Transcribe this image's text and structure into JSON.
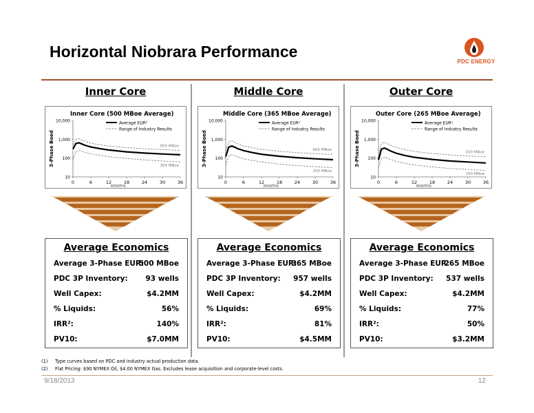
{
  "page": {
    "title": "Horizontal Niobrara Performance",
    "logo_text": "PDC ENERGY",
    "date": "9/18/2013",
    "page_number": "12",
    "footnotes": [
      {
        "num": "(1)",
        "text": "Type curves based on PDC and industry actual production data."
      },
      {
        "num": "(2)",
        "text": "Flat Pricing: $90 NYMEX Oil, $4.00 NYMEX Gas. Excludes lease acquisition and corporate-level costs."
      }
    ]
  },
  "colors": {
    "accent": "#a0522d",
    "wedge_dark": "#b5651d",
    "wedge_light": "#e8c9a8",
    "logo_orange": "#d9541e"
  },
  "columns": [
    {
      "heading": "Inner Core",
      "econ": {
        "title": "Average Economics",
        "rows": [
          {
            "label": "Average 3-Phase EUR:",
            "value": "500 MBoe"
          },
          {
            "label": "PDC 3P Inventory:",
            "value": "93 wells"
          },
          {
            "label": "Well Capex:",
            "value": "$4.2MM"
          },
          {
            "label": "% Liquids:",
            "value": "56%"
          },
          {
            "label": "IRR²:",
            "value": "140%"
          },
          {
            "label": "PV10:",
            "value": "$7.0MM"
          }
        ]
      }
    },
    {
      "heading": "Middle Core",
      "econ": {
        "title": "Average Economics",
        "rows": [
          {
            "label": "Average 3-Phase EUR:",
            "value": "365 MBoe"
          },
          {
            "label": "PDC 3P Inventory:",
            "value": "957 wells"
          },
          {
            "label": "Well Capex:",
            "value": "$4.2MM"
          },
          {
            "label": "% Liquids:",
            "value": "69%"
          },
          {
            "label": "IRR²:",
            "value": "81%"
          },
          {
            "label": "PV10:",
            "value": "$4.5MM"
          }
        ]
      }
    },
    {
      "heading": "Outer Core",
      "econ": {
        "title": "Average Economics",
        "rows": [
          {
            "label": "Average 3-Phase EUR:",
            "value": "265 MBoe"
          },
          {
            "label": "PDC 3P Inventory:",
            "value": "537 wells"
          },
          {
            "label": "Well Capex:",
            "value": "$4.2MM"
          },
          {
            "label": "% Liquids:",
            "value": "77%"
          },
          {
            "label": "IRR²:",
            "value": "50%"
          },
          {
            "label": "PV10:",
            "value": "$3.2MM"
          }
        ]
      }
    }
  ],
  "chart_data": [
    {
      "type": "line",
      "title": "Inner Core (500 MBoe Average)",
      "xlabel": "MONTHS",
      "ylabel": "3-Phase Boed",
      "xlim": [
        0,
        36
      ],
      "ylim": [
        10,
        10000
      ],
      "yscale": "log",
      "x_ticks": [
        "0",
        "6",
        "12",
        "18",
        "24",
        "30",
        "36"
      ],
      "y_ticks": [
        "10",
        "100",
        "1,000",
        "10,000"
      ],
      "legend": [
        "Average EUR¹",
        "Range of Industry Results"
      ],
      "legend_position": "top-right",
      "annotations": [
        "900 MBoe",
        "300 MBoe"
      ],
      "x": [
        0,
        1,
        2,
        3,
        4,
        6,
        9,
        12,
        18,
        24,
        30,
        36
      ],
      "series": [
        {
          "name": "Average EUR¹",
          "style": "solid",
          "values": [
            300,
            600,
            650,
            560,
            480,
            390,
            320,
            270,
            215,
            185,
            165,
            150
          ]
        },
        {
          "name": "Range of Industry Results (high)",
          "style": "dashed",
          "values": [
            500,
            1000,
            1100,
            900,
            780,
            620,
            510,
            440,
            360,
            310,
            280,
            255
          ]
        },
        {
          "name": "Range of Industry Results (low)",
          "style": "dashed",
          "values": [
            80,
            220,
            260,
            230,
            200,
            170,
            140,
            120,
            95,
            80,
            70,
            62
          ]
        }
      ]
    },
    {
      "type": "line",
      "title": "Middle Core (365 MBoe Average)",
      "xlabel": "MONTHS",
      "ylabel": "3-Phase Boed",
      "xlim": [
        0,
        36
      ],
      "ylim": [
        10,
        10000
      ],
      "yscale": "log",
      "x_ticks": [
        "0",
        "6",
        "12",
        "18",
        "24",
        "30",
        "36"
      ],
      "y_ticks": [
        "10",
        "100",
        "1,000",
        "10,000"
      ],
      "legend": [
        "Average EUR¹",
        "Range of Industry Results"
      ],
      "legend_position": "top-right",
      "annotations": [
        "600 MBoe",
        "200 MBoe"
      ],
      "x": [
        0,
        1,
        2,
        3,
        4,
        6,
        9,
        12,
        18,
        24,
        30,
        36
      ],
      "series": [
        {
          "name": "Average EUR¹",
          "style": "solid",
          "values": [
            120,
            380,
            440,
            380,
            320,
            250,
            195,
            160,
            125,
            105,
            92,
            82
          ]
        },
        {
          "name": "Range of Industry Results (high)",
          "style": "dashed",
          "values": [
            250,
            700,
            820,
            700,
            580,
            440,
            350,
            290,
            230,
            195,
            172,
            155
          ]
        },
        {
          "name": "Range of Industry Results (low)",
          "style": "dashed",
          "values": [
            40,
            120,
            150,
            135,
            115,
            92,
            74,
            62,
            48,
            40,
            35,
            31
          ]
        }
      ]
    },
    {
      "type": "line",
      "title": "Outer Core (265 MBoe Average)",
      "xlabel": "MONTHS",
      "ylabel": "3-Phase Boed",
      "xlim": [
        0,
        36
      ],
      "ylim": [
        10,
        10000
      ],
      "yscale": "log",
      "x_ticks": [
        "0",
        "6",
        "12",
        "18",
        "24",
        "30",
        "36"
      ],
      "y_ticks": [
        "10",
        "100",
        "1,000",
        "10,000"
      ],
      "legend": [
        "Average EUR¹",
        "Range of Industry Results"
      ],
      "legend_position": "top-right",
      "annotations": [
        "500 MBoe",
        "150 MBoe"
      ],
      "x": [
        0,
        1,
        2,
        3,
        4,
        6,
        9,
        12,
        18,
        24,
        30,
        36
      ],
      "series": [
        {
          "name": "Average EUR¹",
          "style": "solid",
          "values": [
            80,
            300,
            340,
            290,
            240,
            180,
            135,
            110,
            85,
            70,
            62,
            55
          ]
        },
        {
          "name": "Range of Industry Results (high)",
          "style": "dashed",
          "values": [
            160,
            600,
            700,
            580,
            480,
            360,
            280,
            225,
            175,
            148,
            130,
            118
          ]
        },
        {
          "name": "Range of Industry Results (low)",
          "style": "dashed",
          "values": [
            30,
            95,
            110,
            98,
            84,
            66,
            52,
            43,
            34,
            28,
            25,
            22
          ]
        }
      ]
    }
  ]
}
